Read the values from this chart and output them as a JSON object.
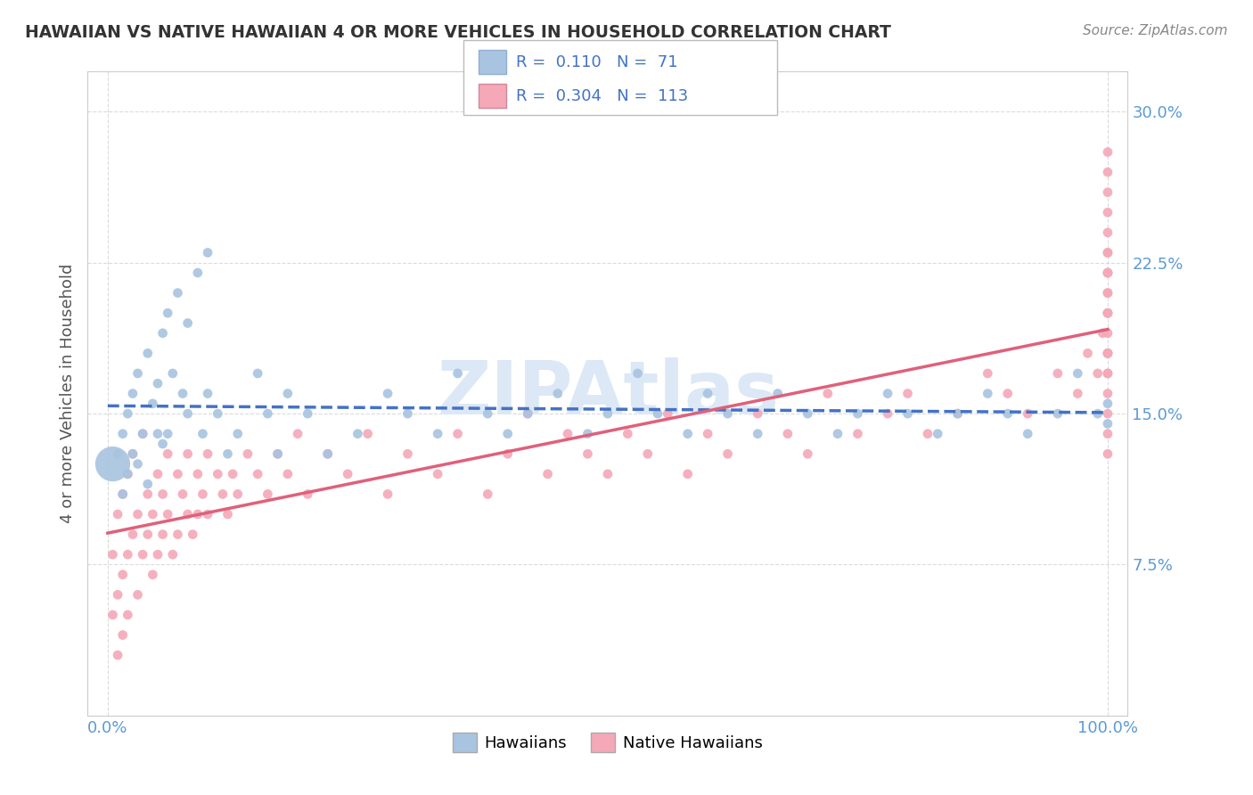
{
  "title": "HAWAIIAN VS NATIVE HAWAIIAN 4 OR MORE VEHICLES IN HOUSEHOLD CORRELATION CHART",
  "source_text": "Source: ZipAtlas.com",
  "ylabel": "4 or more Vehicles in Household",
  "xlim": [
    0.0,
    100.0
  ],
  "ylim": [
    0.0,
    32.0
  ],
  "yticks": [
    0.0,
    7.5,
    15.0,
    22.5,
    30.0
  ],
  "xticks": [
    0.0,
    100.0
  ],
  "xticklabels": [
    "0.0%",
    "100.0%"
  ],
  "yticklabels": [
    "",
    "7.5%",
    "15.0%",
    "22.5%",
    "30.0%"
  ],
  "grid_color": "#cccccc",
  "background_color": "#ffffff",
  "hawaiians_color": "#a8c4e0",
  "native_hawaiians_color": "#f4a8b8",
  "hawaiians_line_color": "#4472c4",
  "native_hawaiians_line_color": "#e0607a",
  "R_hawaiians": 0.11,
  "N_hawaiians": 71,
  "R_native": 0.304,
  "N_native": 113,
  "tick_label_color": "#5b9bd5",
  "watermark_color": "#dce8f5",
  "hawaiians_x": [
    0.5,
    1.0,
    1.5,
    1.5,
    2.0,
    2.0,
    2.5,
    2.5,
    3.0,
    3.0,
    3.5,
    4.0,
    4.0,
    4.5,
    5.0,
    5.0,
    5.5,
    5.5,
    6.0,
    6.0,
    6.5,
    7.0,
    7.5,
    8.0,
    8.0,
    9.0,
    9.5,
    10.0,
    10.0,
    11.0,
    12.0,
    13.0,
    15.0,
    16.0,
    17.0,
    18.0,
    20.0,
    22.0,
    25.0,
    28.0,
    30.0,
    33.0,
    35.0,
    38.0,
    40.0,
    42.0,
    45.0,
    48.0,
    50.0,
    53.0,
    55.0,
    58.0,
    60.0,
    62.0,
    65.0,
    67.0,
    70.0,
    73.0,
    75.0,
    78.0,
    80.0,
    83.0,
    85.0,
    88.0,
    90.0,
    92.0,
    95.0,
    97.0,
    99.0,
    100.0,
    100.0
  ],
  "hawaiians_y": [
    12.5,
    13.0,
    14.0,
    11.0,
    15.0,
    12.0,
    16.0,
    13.0,
    17.0,
    12.5,
    14.0,
    18.0,
    11.5,
    15.5,
    14.0,
    16.5,
    13.5,
    19.0,
    20.0,
    14.0,
    17.0,
    21.0,
    16.0,
    15.0,
    19.5,
    22.0,
    14.0,
    23.0,
    16.0,
    15.0,
    13.0,
    14.0,
    17.0,
    15.0,
    13.0,
    16.0,
    15.0,
    13.0,
    14.0,
    16.0,
    15.0,
    14.0,
    17.0,
    15.0,
    14.0,
    15.0,
    16.0,
    14.0,
    15.0,
    17.0,
    15.0,
    14.0,
    16.0,
    15.0,
    14.0,
    16.0,
    15.0,
    14.0,
    15.0,
    16.0,
    15.0,
    14.0,
    15.0,
    16.0,
    15.0,
    14.0,
    15.0,
    17.0,
    15.0,
    15.5,
    14.5
  ],
  "hawaiians_sizes": [
    800,
    60,
    60,
    60,
    60,
    60,
    60,
    60,
    60,
    60,
    60,
    60,
    60,
    60,
    60,
    60,
    60,
    60,
    60,
    60,
    60,
    60,
    60,
    60,
    60,
    60,
    60,
    60,
    60,
    60,
    60,
    60,
    60,
    60,
    60,
    60,
    60,
    60,
    60,
    60,
    60,
    60,
    60,
    60,
    60,
    60,
    60,
    60,
    60,
    60,
    60,
    60,
    60,
    60,
    60,
    60,
    60,
    60,
    60,
    60,
    60,
    60,
    60,
    60,
    60,
    60,
    60,
    60,
    60,
    60,
    60
  ],
  "native_x": [
    0.5,
    0.5,
    1.0,
    1.0,
    1.0,
    1.5,
    1.5,
    1.5,
    2.0,
    2.0,
    2.0,
    2.5,
    2.5,
    3.0,
    3.0,
    3.5,
    3.5,
    4.0,
    4.0,
    4.5,
    4.5,
    5.0,
    5.0,
    5.5,
    5.5,
    6.0,
    6.0,
    6.5,
    7.0,
    7.0,
    7.5,
    8.0,
    8.0,
    8.5,
    9.0,
    9.0,
    9.5,
    10.0,
    10.0,
    11.0,
    11.5,
    12.0,
    12.5,
    13.0,
    14.0,
    15.0,
    16.0,
    17.0,
    18.0,
    19.0,
    20.0,
    22.0,
    24.0,
    26.0,
    28.0,
    30.0,
    33.0,
    35.0,
    38.0,
    40.0,
    42.0,
    44.0,
    46.0,
    48.0,
    50.0,
    52.0,
    54.0,
    56.0,
    58.0,
    60.0,
    62.0,
    65.0,
    68.0,
    70.0,
    72.0,
    75.0,
    78.0,
    80.0,
    82.0,
    85.0,
    88.0,
    90.0,
    92.0,
    95.0,
    97.0,
    98.0,
    99.0,
    99.5,
    100.0,
    100.0,
    100.0,
    100.0,
    100.0,
    100.0,
    100.0,
    100.0,
    100.0,
    100.0,
    100.0,
    100.0,
    100.0,
    100.0,
    100.0,
    100.0,
    100.0,
    100.0,
    100.0,
    100.0,
    100.0,
    100.0,
    100.0,
    100.0,
    100.0
  ],
  "native_y": [
    8.0,
    5.0,
    10.0,
    6.0,
    3.0,
    11.0,
    7.0,
    4.0,
    12.0,
    8.0,
    5.0,
    13.0,
    9.0,
    10.0,
    6.0,
    14.0,
    8.0,
    9.0,
    11.0,
    10.0,
    7.0,
    12.0,
    8.0,
    11.0,
    9.0,
    13.0,
    10.0,
    8.0,
    12.0,
    9.0,
    11.0,
    10.0,
    13.0,
    9.0,
    12.0,
    10.0,
    11.0,
    13.0,
    10.0,
    12.0,
    11.0,
    10.0,
    12.0,
    11.0,
    13.0,
    12.0,
    11.0,
    13.0,
    12.0,
    14.0,
    11.0,
    13.0,
    12.0,
    14.0,
    11.0,
    13.0,
    12.0,
    14.0,
    11.0,
    13.0,
    15.0,
    12.0,
    14.0,
    13.0,
    12.0,
    14.0,
    13.0,
    15.0,
    12.0,
    14.0,
    13.0,
    15.0,
    14.0,
    13.0,
    16.0,
    14.0,
    15.0,
    16.0,
    14.0,
    15.0,
    17.0,
    16.0,
    15.0,
    17.0,
    16.0,
    18.0,
    17.0,
    19.0,
    18.0,
    20.0,
    17.0,
    22.0,
    19.0,
    21.0,
    18.0,
    23.0,
    20.0,
    25.0,
    22.0,
    24.0,
    27.0,
    21.0,
    16.0,
    13.0,
    18.0,
    26.0,
    23.0,
    28.0,
    14.0,
    20.0,
    17.0,
    22.0,
    15.0
  ],
  "native_sizes": [
    60,
    60,
    60,
    60,
    60,
    60,
    60,
    60,
    60,
    60,
    60,
    60,
    60,
    60,
    60,
    60,
    60,
    60,
    60,
    60,
    60,
    60,
    60,
    60,
    60,
    60,
    60,
    60,
    60,
    60,
    60,
    60,
    60,
    60,
    60,
    60,
    60,
    60,
    60,
    60,
    60,
    60,
    60,
    60,
    60,
    60,
    60,
    60,
    60,
    60,
    60,
    60,
    60,
    60,
    60,
    60,
    60,
    60,
    60,
    60,
    60,
    60,
    60,
    60,
    60,
    60,
    60,
    60,
    60,
    60,
    60,
    60,
    60,
    60,
    60,
    60,
    60,
    60,
    60,
    60,
    60,
    60,
    60,
    60,
    60,
    60,
    60,
    60,
    60,
    60,
    60,
    60,
    60,
    60,
    60,
    60,
    60,
    60,
    60,
    60,
    60,
    60,
    60,
    60,
    60,
    60,
    60,
    60,
    60,
    60,
    60,
    60,
    60
  ]
}
